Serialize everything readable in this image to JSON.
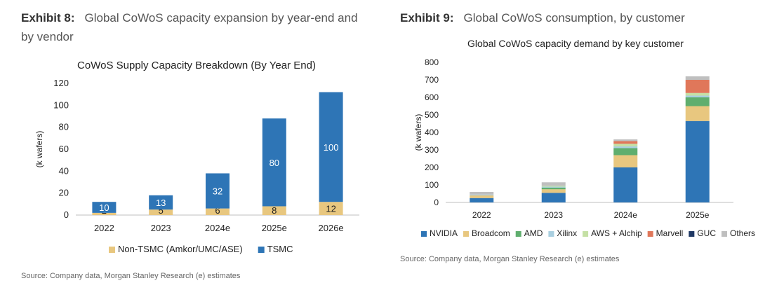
{
  "exhibits": [
    {
      "label": "Exhibit 8:",
      "title_line1": "Global CoWoS capacity expansion by year-end and",
      "title_line2": "by vendor",
      "source": "Source: Company data, Morgan Stanley Research (e) estimates"
    },
    {
      "label": "Exhibit 9:",
      "title_line1": "Global CoWoS consumption, by customer",
      "title_line2": "",
      "source": "Source: Company data, Morgan Stanley Research (e) estimates"
    }
  ],
  "chart_data": [
    {
      "type": "bar",
      "stacked": true,
      "title": "CoWoS Supply Capacity Breakdown (By Year End)",
      "ylabel": "(k wafers)",
      "xlabel": "",
      "ylim": [
        0,
        120
      ],
      "yticks": [
        0,
        20,
        40,
        60,
        80,
        100,
        120
      ],
      "grid": false,
      "legend": "bottom",
      "data_labels": true,
      "categories": [
        "2022",
        "2023",
        "2024e",
        "2025e",
        "2026e"
      ],
      "series": [
        {
          "name": "Non-TSMC (Amkor/UMC/ASE)",
          "color": "#E8C77F",
          "values": [
            2,
            5,
            6,
            8,
            12
          ]
        },
        {
          "name": "TSMC",
          "color": "#2E75B6",
          "values": [
            10,
            13,
            32,
            80,
            100
          ]
        }
      ]
    },
    {
      "type": "bar",
      "stacked": true,
      "title": "Global CoWoS capacity demand by key customer",
      "ylabel": "(k wafers)",
      "xlabel": "",
      "ylim": [
        0,
        800
      ],
      "yticks": [
        0,
        100,
        200,
        300,
        400,
        500,
        600,
        700,
        800
      ],
      "grid": false,
      "legend": "bottom",
      "categories": [
        "2022",
        "2023",
        "2024e",
        "2025e"
      ],
      "series": [
        {
          "name": "NVIDIA",
          "color": "#2E75B6",
          "values": [
            25,
            55,
            200,
            465
          ]
        },
        {
          "name": "Broadcom",
          "color": "#E8C77F",
          "values": [
            15,
            20,
            70,
            85
          ]
        },
        {
          "name": "AMD",
          "color": "#5FAE6E",
          "values": [
            0,
            10,
            40,
            50
          ]
        },
        {
          "name": "Xilinx",
          "color": "#A9CFE0",
          "values": [
            5,
            5,
            10,
            10
          ]
        },
        {
          "name": "AWS + Alchip",
          "color": "#C5E0A5",
          "values": [
            0,
            5,
            15,
            15
          ]
        },
        {
          "name": "Marvell",
          "color": "#E0775A",
          "values": [
            0,
            0,
            15,
            75
          ]
        },
        {
          "name": "GUC",
          "color": "#1F3864",
          "values": [
            0,
            0,
            0,
            0
          ]
        },
        {
          "name": "Others",
          "color": "#BFBFBF",
          "values": [
            15,
            20,
            10,
            20
          ]
        }
      ]
    }
  ]
}
